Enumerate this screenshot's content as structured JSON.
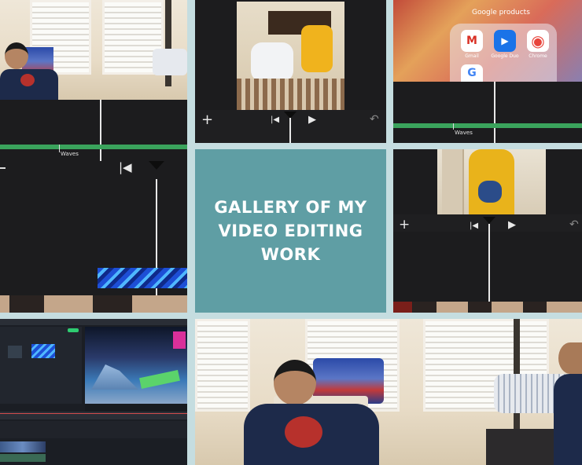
{
  "center": {
    "title_lines": [
      "GALLERY OF MY",
      "VIDEO EDITING",
      "WORK"
    ]
  },
  "tile_top_left": {
    "track_label": "Waves"
  },
  "tile_top_right": {
    "folder_title": "Google products",
    "apps": [
      {
        "label": "Gmail",
        "icon": "gmail-icon",
        "glyph": "M",
        "color": "#d93025"
      },
      {
        "label": "Google Duo",
        "icon": "duo-icon",
        "glyph": "▶",
        "color": "#1a73e8"
      },
      {
        "label": "Chrome",
        "icon": "chrome-icon",
        "glyph": "◉",
        "color": "#34a853"
      },
      {
        "label": "",
        "icon": "google-icon",
        "glyph": "G",
        "color": "#4285f4"
      }
    ],
    "track_label": "Waves"
  },
  "controls": {
    "add": "+",
    "skip_back": "|◀",
    "play": "▶",
    "undo": "↶"
  },
  "colors": {
    "panel": "#5f9ea4",
    "timeline_green": "#3aa35c",
    "editor_bg": "#1c1c1e"
  }
}
